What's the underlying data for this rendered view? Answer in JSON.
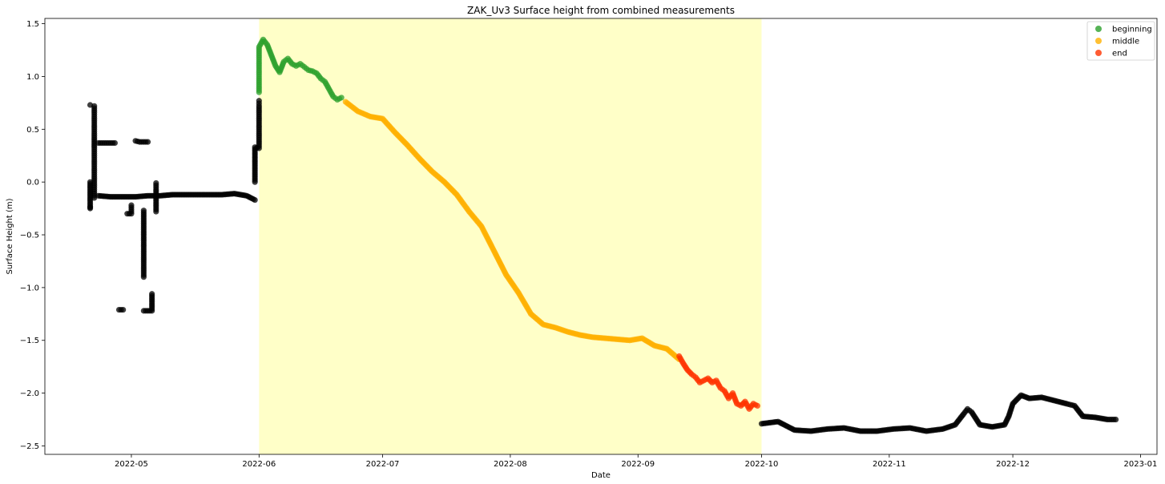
{
  "chart_data": {
    "type": "scatter",
    "title": "ZAK_Uv3 Surface height from combined measurements",
    "xlabel": "Date",
    "ylabel": "Surface Height (m)",
    "x_axis_type": "date",
    "xlim": [
      "2022-04-10",
      "2023-01-05"
    ],
    "ylim": [
      -2.58,
      1.55
    ],
    "x_ticks": [
      "2022-05-01",
      "2022-06-01",
      "2022-07-01",
      "2022-08-01",
      "2022-09-01",
      "2022-10-01",
      "2022-11-01",
      "2022-12-01",
      "2023-01-01"
    ],
    "x_tick_labels": [
      "2022-05",
      "2022-06",
      "2022-07",
      "2022-08",
      "2022-09",
      "2022-10",
      "2022-11",
      "2022-12",
      "2023-01"
    ],
    "y_ticks": [
      -2.5,
      -2.0,
      -1.5,
      -1.0,
      -0.5,
      0.0,
      0.5,
      1.0,
      1.5
    ],
    "y_tick_labels": [
      "−2.5",
      "−2.0",
      "−1.5",
      "−1.0",
      "−0.5",
      "0.0",
      "0.5",
      "1.0",
      "1.5"
    ],
    "grid": false,
    "legend_position": "top-right",
    "highlight_span": {
      "x_start": "2022-06-01",
      "x_end": "2022-10-01",
      "color": "#ffffc8"
    },
    "colors": {
      "other": "#000000",
      "beginning": "#2ca02c",
      "middle": "#ffb000",
      "end": "#ff3300"
    },
    "series": [
      {
        "name": "",
        "color": "#000000",
        "type": "scatter",
        "points": [
          [
            "2022-04-21",
            -0.24
          ],
          [
            "2022-04-21",
            -0.25
          ],
          [
            "2022-04-21",
            0.0
          ],
          [
            "2022-04-21",
            0.73
          ],
          [
            "2022-04-22",
            -0.15
          ],
          [
            "2022-04-22",
            -0.05
          ],
          [
            "2022-04-22",
            0.05
          ],
          [
            "2022-04-22",
            0.13
          ],
          [
            "2022-04-22",
            0.23
          ],
          [
            "2022-04-22",
            0.33
          ],
          [
            "2022-04-22",
            0.42
          ],
          [
            "2022-04-22",
            0.52
          ],
          [
            "2022-04-22",
            0.62
          ],
          [
            "2022-04-22",
            0.72
          ],
          [
            "2022-04-23",
            0.37
          ],
          [
            "2022-04-24",
            0.37
          ],
          [
            "2022-04-25",
            0.37
          ],
          [
            "2022-04-26",
            0.37
          ],
          [
            "2022-04-27",
            0.37
          ],
          [
            "2022-04-23",
            -0.13
          ],
          [
            "2022-04-26",
            -0.14
          ],
          [
            "2022-04-29",
            -0.14
          ],
          [
            "2022-05-02",
            -0.14
          ],
          [
            "2022-05-05",
            -0.13
          ],
          [
            "2022-05-08",
            -0.13
          ],
          [
            "2022-05-11",
            -0.12
          ],
          [
            "2022-05-14",
            -0.12
          ],
          [
            "2022-05-17",
            -0.12
          ],
          [
            "2022-05-20",
            -0.12
          ],
          [
            "2022-05-23",
            -0.12
          ],
          [
            "2022-05-26",
            -0.11
          ],
          [
            "2022-05-29",
            -0.13
          ],
          [
            "2022-05-31",
            -0.17
          ],
          [
            "2022-04-28",
            -1.21
          ],
          [
            "2022-04-29",
            -1.21
          ],
          [
            "2022-04-30",
            -0.3
          ],
          [
            "2022-05-01",
            -0.3
          ],
          [
            "2022-05-01",
            -0.22
          ],
          [
            "2022-05-02",
            0.39
          ],
          [
            "2022-05-03",
            0.38
          ],
          [
            "2022-05-05",
            0.38
          ],
          [
            "2022-05-04",
            -0.27
          ],
          [
            "2022-05-04",
            -0.43
          ],
          [
            "2022-05-04",
            -0.59
          ],
          [
            "2022-05-04",
            -0.75
          ],
          [
            "2022-05-04",
            -0.9
          ],
          [
            "2022-05-04",
            -1.22
          ],
          [
            "2022-05-06",
            -1.22
          ],
          [
            "2022-05-06",
            -1.06
          ],
          [
            "2022-05-07",
            -0.28
          ],
          [
            "2022-05-07",
            -0.07
          ],
          [
            "2022-05-07",
            -0.01
          ],
          [
            "2022-05-31",
            0.0
          ],
          [
            "2022-05-31",
            0.16
          ],
          [
            "2022-05-31",
            0.33
          ],
          [
            "2022-06-01",
            0.32
          ],
          [
            "2022-06-01",
            0.4
          ],
          [
            "2022-06-01",
            0.48
          ],
          [
            "2022-06-01",
            0.56
          ],
          [
            "2022-06-01",
            0.64
          ],
          [
            "2022-06-01",
            0.72
          ],
          [
            "2022-06-01",
            0.77
          ],
          [
            "2022-10-01",
            -2.29
          ],
          [
            "2022-10-05",
            -2.27
          ],
          [
            "2022-10-09",
            -2.35
          ],
          [
            "2022-10-13",
            -2.36
          ],
          [
            "2022-10-17",
            -2.34
          ],
          [
            "2022-10-21",
            -2.33
          ],
          [
            "2022-10-25",
            -2.36
          ],
          [
            "2022-10-29",
            -2.36
          ],
          [
            "2022-11-02",
            -2.34
          ],
          [
            "2022-11-06",
            -2.33
          ],
          [
            "2022-11-10",
            -2.36
          ],
          [
            "2022-11-14",
            -2.34
          ],
          [
            "2022-11-17",
            -2.3
          ],
          [
            "2022-11-19",
            -2.2
          ],
          [
            "2022-11-20",
            -2.15
          ],
          [
            "2022-11-21",
            -2.18
          ],
          [
            "2022-11-23",
            -2.3
          ],
          [
            "2022-11-26",
            -2.32
          ],
          [
            "2022-11-29",
            -2.3
          ],
          [
            "2022-11-30",
            -2.22
          ],
          [
            "2022-12-01",
            -2.1
          ],
          [
            "2022-12-03",
            -2.02
          ],
          [
            "2022-12-05",
            -2.05
          ],
          [
            "2022-12-08",
            -2.04
          ],
          [
            "2022-12-11",
            -2.07
          ],
          [
            "2022-12-14",
            -2.1
          ],
          [
            "2022-12-16",
            -2.12
          ],
          [
            "2022-12-18",
            -2.22
          ],
          [
            "2022-12-21",
            -2.23
          ],
          [
            "2022-12-24",
            -2.25
          ],
          [
            "2022-12-26",
            -2.25
          ]
        ]
      },
      {
        "name": "beginning",
        "color": "#2ca02c",
        "type": "scatter",
        "points": [
          [
            "2022-06-01",
            0.85
          ],
          [
            "2022-06-01",
            0.98
          ],
          [
            "2022-06-01",
            1.08
          ],
          [
            "2022-06-01",
            1.18
          ],
          [
            "2022-06-01",
            1.28
          ],
          [
            "2022-06-02",
            1.35
          ],
          [
            "2022-06-03",
            1.3
          ],
          [
            "2022-06-04",
            1.2
          ],
          [
            "2022-06-05",
            1.1
          ],
          [
            "2022-06-06",
            1.04
          ],
          [
            "2022-06-07",
            1.14
          ],
          [
            "2022-06-08",
            1.17
          ],
          [
            "2022-06-09",
            1.12
          ],
          [
            "2022-06-10",
            1.1
          ],
          [
            "2022-06-11",
            1.12
          ],
          [
            "2022-06-12",
            1.09
          ],
          [
            "2022-06-13",
            1.06
          ],
          [
            "2022-06-14",
            1.05
          ],
          [
            "2022-06-15",
            1.03
          ],
          [
            "2022-06-16",
            0.98
          ],
          [
            "2022-06-17",
            0.95
          ],
          [
            "2022-06-18",
            0.88
          ],
          [
            "2022-06-19",
            0.81
          ],
          [
            "2022-06-20",
            0.78
          ],
          [
            "2022-06-21",
            0.8
          ]
        ]
      },
      {
        "name": "middle",
        "color": "#ffb000",
        "type": "scatter",
        "points": [
          [
            "2022-06-22",
            0.76
          ],
          [
            "2022-06-25",
            0.67
          ],
          [
            "2022-06-28",
            0.62
          ],
          [
            "2022-07-01",
            0.6
          ],
          [
            "2022-07-04",
            0.47
          ],
          [
            "2022-07-07",
            0.35
          ],
          [
            "2022-07-10",
            0.22
          ],
          [
            "2022-07-13",
            0.1
          ],
          [
            "2022-07-16",
            0.0
          ],
          [
            "2022-07-19",
            -0.12
          ],
          [
            "2022-07-22",
            -0.28
          ],
          [
            "2022-07-25",
            -0.42
          ],
          [
            "2022-07-28",
            -0.65
          ],
          [
            "2022-07-31",
            -0.88
          ],
          [
            "2022-08-03",
            -1.05
          ],
          [
            "2022-08-06",
            -1.25
          ],
          [
            "2022-08-09",
            -1.35
          ],
          [
            "2022-08-12",
            -1.38
          ],
          [
            "2022-08-15",
            -1.42
          ],
          [
            "2022-08-18",
            -1.45
          ],
          [
            "2022-08-21",
            -1.47
          ],
          [
            "2022-08-24",
            -1.48
          ],
          [
            "2022-08-27",
            -1.49
          ],
          [
            "2022-08-30",
            -1.5
          ],
          [
            "2022-09-02",
            -1.48
          ],
          [
            "2022-09-05",
            -1.55
          ],
          [
            "2022-09-08",
            -1.58
          ],
          [
            "2022-09-11",
            -1.68
          ]
        ]
      },
      {
        "name": "end",
        "color": "#ff3300",
        "type": "scatter",
        "points": [
          [
            "2022-09-11",
            -1.65
          ],
          [
            "2022-09-12",
            -1.72
          ],
          [
            "2022-09-13",
            -1.78
          ],
          [
            "2022-09-14",
            -1.82
          ],
          [
            "2022-09-15",
            -1.85
          ],
          [
            "2022-09-16",
            -1.9
          ],
          [
            "2022-09-17",
            -1.88
          ],
          [
            "2022-09-18",
            -1.86
          ],
          [
            "2022-09-19",
            -1.9
          ],
          [
            "2022-09-20",
            -1.88
          ],
          [
            "2022-09-21",
            -1.95
          ],
          [
            "2022-09-22",
            -1.98
          ],
          [
            "2022-09-23",
            -2.05
          ],
          [
            "2022-09-24",
            -2.0
          ],
          [
            "2022-09-25",
            -2.1
          ],
          [
            "2022-09-26",
            -2.12
          ],
          [
            "2022-09-27",
            -2.08
          ],
          [
            "2022-09-28",
            -2.15
          ],
          [
            "2022-09-29",
            -2.1
          ],
          [
            "2022-09-30",
            -2.12
          ]
        ]
      }
    ]
  }
}
